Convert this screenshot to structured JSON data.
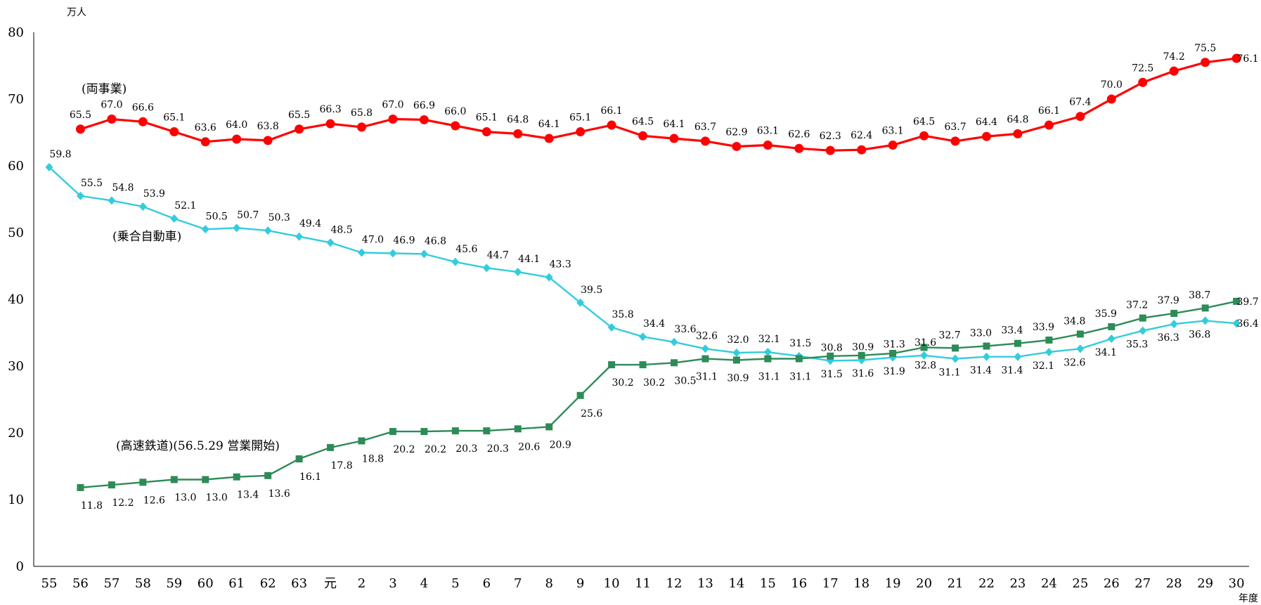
{
  "chart_data": {
    "type": "line",
    "unit_label": "万人",
    "xlabel": "年度",
    "ylim": [
      0,
      80
    ],
    "yticks": [
      "0",
      "10",
      "20",
      "30",
      "40",
      "50",
      "60",
      "70",
      "80"
    ],
    "grid": false,
    "categories": [
      "55",
      "56",
      "57",
      "58",
      "59",
      "60",
      "61",
      "62",
      "63",
      "元",
      "2",
      "3",
      "4",
      "5",
      "6",
      "7",
      "8",
      "9",
      "10",
      "11",
      "12",
      "13",
      "14",
      "15",
      "16",
      "17",
      "18",
      "19",
      "20",
      "21",
      "22",
      "23",
      "24",
      "25",
      "26",
      "27",
      "28",
      "29",
      "30"
    ],
    "series": [
      {
        "name": "(両事業)",
        "color": "#ff0000",
        "marker": "circle",
        "values": [
          null,
          65.5,
          67.0,
          66.6,
          65.1,
          63.6,
          64.0,
          63.8,
          65.5,
          66.3,
          65.8,
          67.0,
          66.9,
          66.0,
          65.1,
          64.8,
          64.1,
          65.1,
          66.1,
          64.5,
          64.1,
          63.7,
          62.9,
          63.1,
          62.6,
          62.3,
          62.4,
          63.1,
          64.5,
          63.7,
          64.4,
          64.8,
          66.1,
          67.4,
          70.0,
          72.5,
          74.2,
          75.5,
          76.1
        ],
        "labels": [
          null,
          "65.5",
          "67.0",
          "66.6",
          "65.1",
          "63.6",
          "64.0",
          "63.8",
          "65.5",
          "66.3",
          "65.8",
          "67.0",
          "66.9",
          "66.0",
          "65.1",
          "64.8",
          "64.1",
          "65.1",
          "66.1",
          "64.5",
          "64.1",
          "63.7",
          "62.9",
          "63.1",
          "62.6",
          "62.3",
          "62.4",
          "63.1",
          "64.5",
          "63.7",
          "64.4",
          "64.8",
          "66.1",
          "67.4",
          "70.0",
          "72.5",
          "74.2",
          "75.5",
          "76.1"
        ]
      },
      {
        "name": "(乗合自動車)",
        "color": "#33ccdd",
        "marker": "diamond",
        "values": [
          59.8,
          55.5,
          54.8,
          53.9,
          52.1,
          50.5,
          50.7,
          50.3,
          49.4,
          48.5,
          47.0,
          46.9,
          46.8,
          45.6,
          44.7,
          44.1,
          43.3,
          39.5,
          35.8,
          34.4,
          33.6,
          32.6,
          32.0,
          32.1,
          31.5,
          30.8,
          30.9,
          31.3,
          31.6,
          31.1,
          31.4,
          31.4,
          32.1,
          32.6,
          34.1,
          35.3,
          36.3,
          36.8,
          36.4
        ],
        "labels": [
          "59.8",
          "55.5",
          "54.8",
          "53.9",
          "52.1",
          "50.5",
          "50.7",
          "50.3",
          "49.4",
          "48.5",
          "47.0",
          "46.9",
          "46.8",
          "45.6",
          "44.7",
          "44.1",
          "43.3",
          "39.5",
          "35.8",
          "34.4",
          "33.6",
          "32.6",
          "32.0",
          "32.1",
          "31.5",
          "30.8",
          "30.9",
          "31.3",
          "31.6",
          "31.1",
          "31.4",
          "31.4",
          "32.1",
          "32.6",
          "34.1",
          "35.3",
          "36.3",
          "36.8",
          "36.4"
        ]
      },
      {
        "name": "(高速鉄道)(56.5.29 営業開始)",
        "color": "#2e8b57",
        "marker": "square",
        "values": [
          null,
          11.8,
          12.2,
          12.6,
          13.0,
          13.0,
          13.4,
          13.6,
          16.1,
          17.8,
          18.8,
          20.2,
          20.2,
          20.3,
          20.3,
          20.6,
          20.9,
          25.6,
          30.2,
          30.2,
          30.5,
          31.1,
          30.9,
          31.1,
          31.1,
          31.5,
          31.6,
          31.9,
          32.8,
          32.7,
          33.0,
          33.4,
          33.9,
          34.8,
          35.9,
          37.2,
          37.9,
          38.7,
          39.7
        ],
        "labels": [
          null,
          "11.8",
          "12.2",
          "12.6",
          "13.0",
          "13.0",
          "13.4",
          "13.6",
          "16.1",
          "17.8",
          "18.8",
          "20.2",
          "20.2",
          "20.3",
          "20.3",
          "20.6",
          "20.9",
          "25.6",
          "30.2",
          "30.2",
          "30.5",
          "31.1",
          "30.9",
          "31.1",
          "31.1",
          "31.5",
          "31.6",
          "31.9",
          "32.8",
          "32.7",
          "33.0",
          "33.4",
          "33.9",
          "34.8",
          "35.9",
          "37.2",
          "37.9",
          "38.7",
          "39.7"
        ]
      }
    ]
  }
}
